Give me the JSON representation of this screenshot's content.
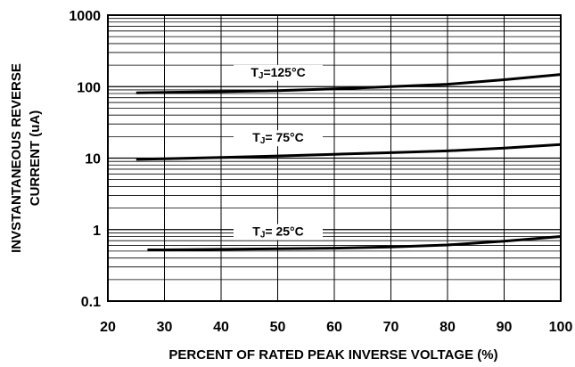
{
  "chart_data": {
    "type": "line",
    "xlabel": "PERCENT OF RATED PEAK INVERSE VOLTAGE (%)",
    "ylabel_lines": [
      "INVSTANTANEOUS REVERSE",
      "CURRENT (uA)"
    ],
    "x_ticks": [
      "20",
      "30",
      "40",
      "50",
      "60",
      "70",
      "80",
      "90",
      "100"
    ],
    "y_ticks": [
      "0.1",
      "1",
      "10",
      "100",
      "1000"
    ],
    "xlim": [
      20,
      100
    ],
    "ylim": [
      0.1,
      1000
    ],
    "yscale": "log",
    "grid": true,
    "series": [
      {
        "label_main": "T",
        "label_sub": "J",
        "label_rest": "=125°C",
        "x": [
          25,
          30,
          40,
          50,
          60,
          70,
          80,
          90,
          100
        ],
        "y": [
          82,
          83,
          85,
          88,
          93,
          100,
          108,
          125,
          148
        ]
      },
      {
        "label_main": "T",
        "label_sub": "J",
        "label_rest": "= 75°C",
        "x": [
          25,
          30,
          40,
          50,
          60,
          70,
          80,
          90,
          100
        ],
        "y": [
          9.6,
          9.8,
          10.2,
          10.7,
          11.3,
          11.9,
          12.6,
          13.8,
          15.5
        ]
      },
      {
        "label_main": "T",
        "label_sub": "J",
        "label_rest": "= 25°C",
        "x": [
          27,
          30,
          40,
          50,
          60,
          70,
          80,
          90,
          100
        ],
        "y": [
          0.52,
          0.52,
          0.53,
          0.54,
          0.55,
          0.57,
          0.61,
          0.69,
          0.8
        ]
      }
    ]
  }
}
